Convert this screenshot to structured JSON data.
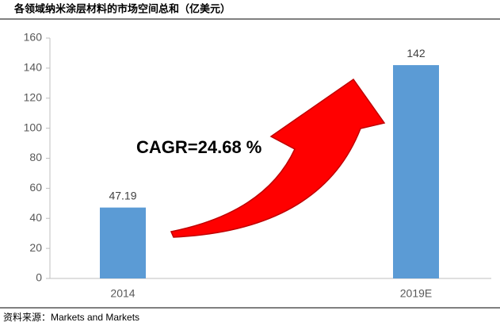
{
  "chart_data": {
    "type": "bar",
    "title": "各领域纳米涂层材料的市场空间总和（亿美元）",
    "categories": [
      "2014",
      "2019E"
    ],
    "values": [
      47.19,
      142
    ],
    "color": "#5b9bd5",
    "ylim": [
      0,
      160
    ],
    "yticks": [
      0,
      20,
      40,
      60,
      80,
      100,
      120,
      140,
      160
    ],
    "grid": false,
    "annotation": "CAGR=24.68 %",
    "source": "资料来源：Markets and Markets"
  }
}
